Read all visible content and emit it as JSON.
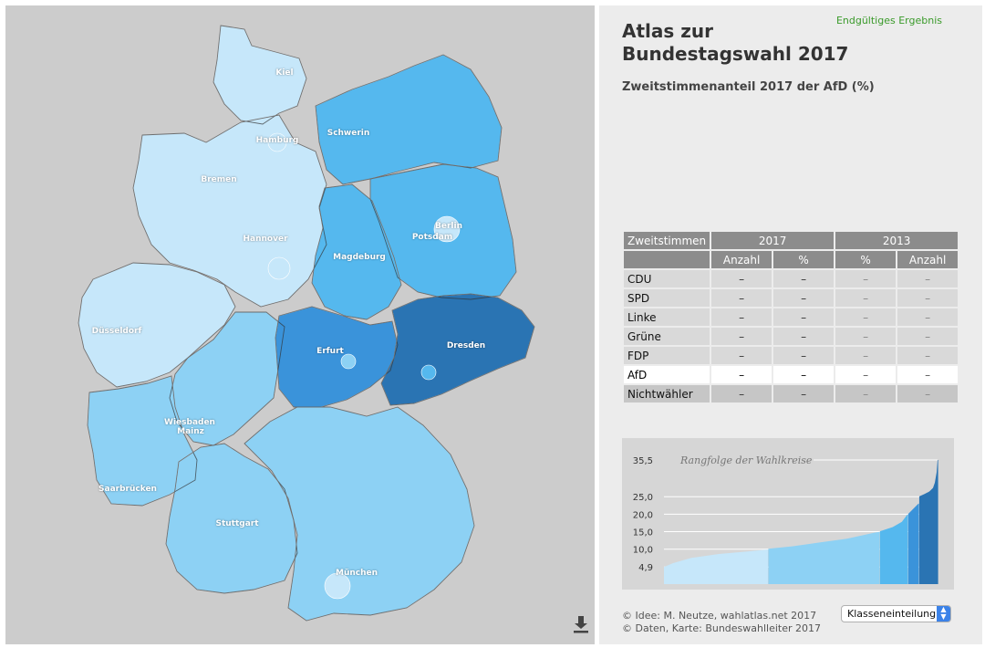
{
  "map": {
    "cities": [
      {
        "id": "kiel",
        "name": "Kiel"
      },
      {
        "id": "hamburg",
        "name": "Hamburg"
      },
      {
        "id": "schwerin",
        "name": "Schwerin"
      },
      {
        "id": "bremen",
        "name": "Bremen"
      },
      {
        "id": "berlin",
        "name": "Berlin"
      },
      {
        "id": "potsdam",
        "name": "Potsdam"
      },
      {
        "id": "hannover",
        "name": "Hannover"
      },
      {
        "id": "magdeburg",
        "name": "Magdeburg"
      },
      {
        "id": "duesseldorf",
        "name": "Düsseldorf"
      },
      {
        "id": "erfurt",
        "name": "Erfurt"
      },
      {
        "id": "dresden",
        "name": "Dresden"
      },
      {
        "id": "wiesbaden",
        "name": "Wiesbaden"
      },
      {
        "id": "mainz",
        "name": "Mainz"
      },
      {
        "id": "saarbruecken",
        "name": "Saarbrücken"
      },
      {
        "id": "stuttgart",
        "name": "Stuttgart"
      },
      {
        "id": "muenchen",
        "name": "München"
      }
    ],
    "colors": {
      "class1": "#c6e7fa",
      "class2": "#8dd1f4",
      "class3": "#55b8ee",
      "class4": "#3a93da",
      "class5": "#2a74b3",
      "background": "#cccccc"
    },
    "download_icon": "download-icon"
  },
  "info": {
    "status": "Endgültiges Ergebnis",
    "title_line1": "Atlas zur",
    "title_line2": "Bundestagswahl 2017",
    "subtitle": "Zweitstimmenanteil 2017 der AfD (%)"
  },
  "table": {
    "header_label": "Zweitstimmen",
    "year_a": "2017",
    "year_b": "2013",
    "col_count": "Anzahl",
    "col_pct": "%",
    "rows": [
      {
        "party": "CDU",
        "a_count": "–",
        "a_pct": "–",
        "b_pct": "–",
        "b_count": "–"
      },
      {
        "party": "SPD",
        "a_count": "–",
        "a_pct": "–",
        "b_pct": "–",
        "b_count": "–"
      },
      {
        "party": "Linke",
        "a_count": "–",
        "a_pct": "–",
        "b_pct": "–",
        "b_count": "–"
      },
      {
        "party": "Grüne",
        "a_count": "–",
        "a_pct": "–",
        "b_pct": "–",
        "b_count": "–"
      },
      {
        "party": "FDP",
        "a_count": "–",
        "a_pct": "–",
        "b_pct": "–",
        "b_count": "–"
      },
      {
        "party": "AfD",
        "a_count": "–",
        "a_pct": "–",
        "b_pct": "–",
        "b_count": "–"
      },
      {
        "party": "Nichtwähler",
        "a_count": "–",
        "a_pct": "–",
        "b_pct": "–",
        "b_count": "–"
      }
    ]
  },
  "chart_data": {
    "type": "area",
    "title": "Rangfolge der Wahlkreise",
    "ytick_labels": [
      "35,5",
      "25,0",
      "20,0",
      "15,0",
      "10,0",
      "4,9"
    ],
    "yticks": [
      35.5,
      25,
      20,
      15,
      10,
      4.9
    ],
    "ylim": [
      0,
      35.5
    ],
    "xlim": [
      0,
      299
    ],
    "class_breaks": [
      10,
      15,
      20,
      25
    ],
    "class_colors": [
      "#c6e7fa",
      "#8dd1f4",
      "#55b8ee",
      "#3a93da",
      "#2a74b3"
    ],
    "x": [
      0,
      10,
      30,
      60,
      90,
      113,
      114,
      140,
      170,
      200,
      230,
      235,
      236,
      250,
      260,
      266,
      267,
      278,
      279,
      285,
      290,
      294,
      296,
      298,
      299
    ],
    "values": [
      4.9,
      6.0,
      7.5,
      8.6,
      9.3,
      9.9,
      10.1,
      10.8,
      11.9,
      13.0,
      14.7,
      14.9,
      15.1,
      16.3,
      17.8,
      19.9,
      20.1,
      23.0,
      25.1,
      25.8,
      26.5,
      27.5,
      29.0,
      32.0,
      35.5
    ]
  },
  "credits": {
    "line1": "© Idee: M. Neutze, wahlatlas.net 2017",
    "line2": "© Daten, Karte: Bundeswahlleiter 2017"
  },
  "controls": {
    "classify_label": "Klasseneinteilung",
    "arrows": "▲▼"
  }
}
